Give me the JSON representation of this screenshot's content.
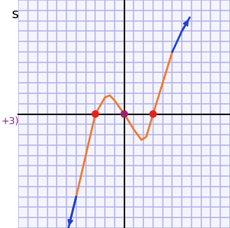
{
  "chart_data": {
    "type": "line",
    "x": [
      -5.8,
      -5,
      -4,
      -3,
      -2,
      -1.5,
      -1,
      0,
      1,
      1.8,
      2.3,
      3,
      4,
      5,
      6,
      6.8
    ],
    "series": [
      {
        "color": "#f07830",
        "values": [
          null,
          -8,
          -4,
          0,
          1.6,
          1.8,
          1.3,
          0,
          -1.5,
          -2.5,
          -2.2,
          0,
          3,
          6,
          null,
          null
        ]
      },
      {
        "color": "#1f3fd0",
        "values": [
          -11,
          -8,
          null,
          null,
          null,
          null,
          null,
          null,
          null,
          null,
          null,
          null,
          null,
          6,
          8,
          9.3
        ]
      }
    ],
    "points": {
      "type": "scatter",
      "x": [
        -3,
        0,
        3
      ],
      "values": [
        0,
        0,
        0
      ],
      "colors": [
        "#e8201a",
        "#a0206a",
        "#e8201a"
      ]
    },
    "annotations": [
      "s",
      "+3)"
    ],
    "xlim": [
      -11,
      11
    ],
    "ylim": [
      -11,
      11
    ],
    "xticks": [
      -11,
      -10,
      -9,
      -8,
      -7,
      -6,
      -5,
      -4,
      -3,
      -2,
      -1,
      0,
      1,
      2,
      3,
      4,
      5,
      6,
      7,
      8,
      9,
      10,
      11
    ],
    "yticks": [
      -11,
      -10,
      -9,
      -8,
      -7,
      -6,
      -5,
      -4,
      -3,
      -2,
      -1,
      0,
      1,
      2,
      3,
      4,
      5,
      6,
      7,
      8,
      9,
      10,
      11
    ],
    "grid": true,
    "tick_labels": false
  }
}
